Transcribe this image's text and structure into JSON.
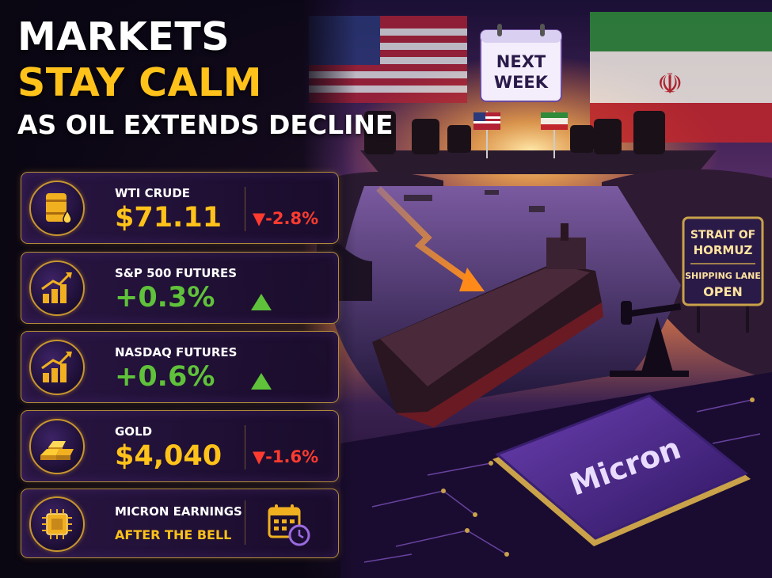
{
  "headline": {
    "line1": "MARKETS",
    "line2": "STAY CALM",
    "line3": "AS OIL EXTENDS DECLINE"
  },
  "cards": [
    {
      "label": "WTI CRUDE",
      "value": "$71.11",
      "change": "▼-2.8%",
      "direction": "down",
      "icon": "oil-barrel-icon"
    },
    {
      "label": "S&P 500 FUTURES",
      "value": "+0.3%",
      "change": "",
      "direction": "up",
      "icon": "bar-chart-up-icon"
    },
    {
      "label": "NASDAQ FUTURES",
      "value": "+0.6%",
      "change": "",
      "direction": "up",
      "icon": "bar-chart-up-icon"
    },
    {
      "label": "GOLD",
      "value": "$4,040",
      "change": "▼-1.6%",
      "direction": "down",
      "icon": "gold-bars-icon"
    },
    {
      "label": "MICRON EARNINGS",
      "sublabel": "AFTER THE BELL",
      "icon": "chip-icon",
      "side_icon": "calendar-clock-icon"
    }
  ],
  "scene": {
    "calendar_line1": "NEXT",
    "calendar_line2": "WEEK",
    "sign_line1": "STRAIT OF",
    "sign_line2": "HORMUZ",
    "sign_line3": "SHIPPING LANE",
    "sign_line4": "OPEN",
    "chip_brand": "Micron"
  },
  "colors": {
    "accent_gold": "#ffc21a",
    "up_green": "#5fc23a",
    "down_red": "#ff3b2f",
    "panel_purple": "#2a1644",
    "border_gold": "#b08a3a"
  }
}
